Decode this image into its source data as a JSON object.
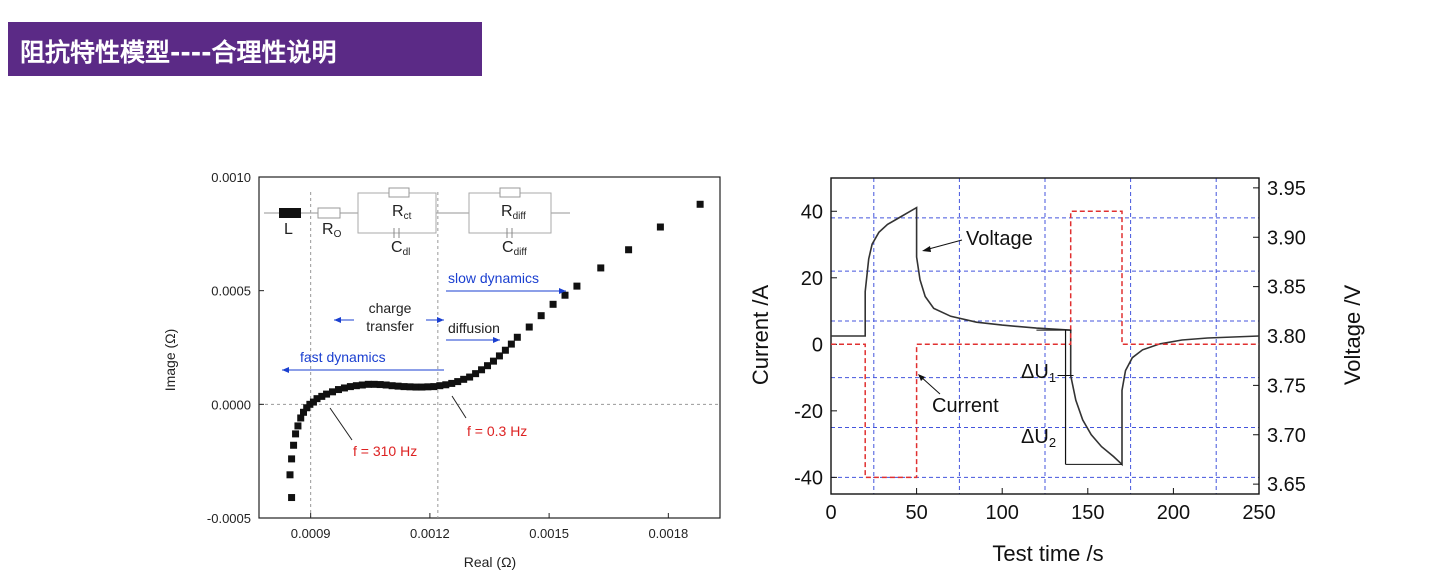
{
  "slide": {
    "title": "阻抗特性模型----合理性说明"
  },
  "chart_data": [
    {
      "type": "scatter",
      "xlabel": "Real (Ω)",
      "ylabel": "Image (Ω)",
      "xlim": [
        0.00077,
        0.00193
      ],
      "ylim": [
        -0.0005,
        0.001
      ],
      "x_ticks": [
        {
          "value": 0.0009,
          "label": "0.0009"
        },
        {
          "value": 0.0012,
          "label": "0.0012"
        },
        {
          "value": 0.0015,
          "label": "0.0015"
        },
        {
          "value": 0.0018,
          "label": "0.0018"
        }
      ],
      "y_ticks": [
        {
          "value": -0.0005,
          "label": "-0.0005"
        },
        {
          "value": 0.0,
          "label": "0.0000"
        },
        {
          "value": 0.0005,
          "label": "0.0005"
        },
        {
          "value": 0.001,
          "label": "0.0010"
        }
      ],
      "points": [
        [
          0.000852,
          -0.00041
        ],
        [
          0.000848,
          -0.00031
        ],
        [
          0.000852,
          -0.00024
        ],
        [
          0.000857,
          -0.00018
        ],
        [
          0.000862,
          -0.00013
        ],
        [
          0.000868,
          -9.5e-05
        ],
        [
          0.000875,
          -6e-05
        ],
        [
          0.000882,
          -3.5e-05
        ],
        [
          0.00089,
          -1.5e-05
        ],
        [
          0.000898,
          0.0
        ],
        [
          0.000907,
          1e-05
        ],
        [
          0.000916,
          2.5e-05
        ],
        [
          0.000928,
          3.5e-05
        ],
        [
          0.00094,
          4.5e-05
        ],
        [
          0.000955,
          5.5e-05
        ],
        [
          0.00097,
          6.5e-05
        ],
        [
          0.000985,
          7.2e-05
        ],
        [
          0.001,
          7.8e-05
        ],
        [
          0.001015,
          8.2e-05
        ],
        [
          0.00103,
          8.5e-05
        ],
        [
          0.001045,
          8.8e-05
        ],
        [
          0.00106,
          8.8e-05
        ],
        [
          0.001075,
          8.7e-05
        ],
        [
          0.00109,
          8.5e-05
        ],
        [
          0.001105,
          8.2e-05
        ],
        [
          0.00112,
          8e-05
        ],
        [
          0.001135,
          7.8e-05
        ],
        [
          0.00115,
          7.7e-05
        ],
        [
          0.001165,
          7.6e-05
        ],
        [
          0.00118,
          7.6e-05
        ],
        [
          0.001195,
          7.7e-05
        ],
        [
          0.00121,
          7.8e-05
        ],
        [
          0.001225,
          8.2e-05
        ],
        [
          0.00124,
          8.6e-05
        ],
        [
          0.001255,
          9.2e-05
        ],
        [
          0.00127,
          0.0001
        ],
        [
          0.001285,
          0.00011
        ],
        [
          0.0013,
          0.00012
        ],
        [
          0.001315,
          0.000135
        ],
        [
          0.00133,
          0.000152
        ],
        [
          0.001345,
          0.00017
        ],
        [
          0.00136,
          0.00019
        ],
        [
          0.001375,
          0.000213
        ],
        [
          0.00139,
          0.000238
        ],
        [
          0.001405,
          0.000265
        ],
        [
          0.00142,
          0.000295
        ],
        [
          0.00145,
          0.00034
        ],
        [
          0.00148,
          0.00039
        ],
        [
          0.00151,
          0.00044
        ],
        [
          0.00154,
          0.00048
        ],
        [
          0.00157,
          0.00052
        ],
        [
          0.00163,
          0.0006
        ],
        [
          0.0017,
          0.00068
        ],
        [
          0.00178,
          0.00078
        ],
        [
          0.00188,
          0.00088
        ]
      ],
      "vlines": [
        0.0009,
        0.00122
      ],
      "circuit_labels": {
        "L": "L",
        "Ro": "R",
        "Ro_sub": "O",
        "Rct": "R",
        "Rct_sub": "ct",
        "Cdl": "C",
        "Cdl_sub": "dl",
        "Rdiff": "R",
        "Rdiff_sub": "diff",
        "Cdiff": "C",
        "Cdiff_sub": "diff"
      },
      "annotations": {
        "slow_dynamics": "slow dynamics",
        "charge_line1": "charge",
        "charge_line2": "transfer",
        "diffusion": "diffusion",
        "fast_dynamics": "fast dynamics",
        "f_high": "f = 310 Hz",
        "f_low": "f = 0.3 Hz"
      }
    },
    {
      "type": "line",
      "xlabel": "Test time /s",
      "ylabel_left": "Current /A",
      "ylabel_right": "Voltage /V",
      "xlim": [
        0,
        250
      ],
      "ylim_left": [
        -45,
        50
      ],
      "ylim_right": [
        3.64,
        3.96
      ],
      "x_ticks": [
        0,
        50,
        100,
        150,
        200,
        250
      ],
      "y_left_ticks": [
        -40,
        -20,
        0,
        20,
        40
      ],
      "y_right_ticks": [
        {
          "value": 3.65,
          "label": "3.65"
        },
        {
          "value": 3.7,
          "label": "3.70"
        },
        {
          "value": 3.75,
          "label": "3.75"
        },
        {
          "value": 3.8,
          "label": "3.80"
        },
        {
          "value": 3.85,
          "label": "3.85"
        },
        {
          "value": 3.9,
          "label": "3.90"
        },
        {
          "value": 3.95,
          "label": "3.95"
        }
      ],
      "grid_x": [
        25,
        75,
        125,
        175,
        225
      ],
      "grid_y_left": [
        -40,
        -25,
        -10,
        7,
        22,
        38
      ],
      "series": [
        {
          "name": "Voltage",
          "axis": "right",
          "color": "#333333",
          "points": [
            [
              0,
              3.8
            ],
            [
              20,
              3.8
            ],
            [
              20,
              3.845
            ],
            [
              22,
              3.878
            ],
            [
              24,
              3.893
            ],
            [
              28,
              3.905
            ],
            [
              33,
              3.913
            ],
            [
              40,
              3.92
            ],
            [
              45,
              3.925
            ],
            [
              50,
              3.93
            ],
            [
              50,
              3.88
            ],
            [
              52,
              3.857
            ],
            [
              55,
              3.84
            ],
            [
              60,
              3.828
            ],
            [
              70,
              3.82
            ],
            [
              85,
              3.814
            ],
            [
              100,
              3.811
            ],
            [
              120,
              3.808
            ],
            [
              140,
              3.806
            ],
            [
              140,
              3.76
            ],
            [
              143,
              3.735
            ],
            [
              147,
              3.715
            ],
            [
              152,
              3.7
            ],
            [
              158,
              3.688
            ],
            [
              165,
              3.678
            ],
            [
              170,
              3.67
            ],
            [
              170,
              3.745
            ],
            [
              172,
              3.765
            ],
            [
              176,
              3.778
            ],
            [
              182,
              3.786
            ],
            [
              192,
              3.792
            ],
            [
              205,
              3.796
            ],
            [
              220,
              3.798
            ],
            [
              250,
              3.8
            ]
          ]
        },
        {
          "name": "Current",
          "axis": "left",
          "color": "#e03030",
          "points": [
            [
              0,
              0
            ],
            [
              20,
              0
            ],
            [
              20,
              -40
            ],
            [
              50,
              -40
            ],
            [
              50,
              0
            ],
            [
              140,
              0
            ],
            [
              140,
              40
            ],
            [
              170,
              40
            ],
            [
              170,
              0
            ],
            [
              250,
              0
            ]
          ]
        }
      ],
      "annotations": {
        "voltage_label": "Voltage",
        "current_label": "Current",
        "dU1": "ΔU",
        "dU1_sub": "1",
        "dU2": "ΔU",
        "dU2_sub": "2"
      }
    }
  ]
}
